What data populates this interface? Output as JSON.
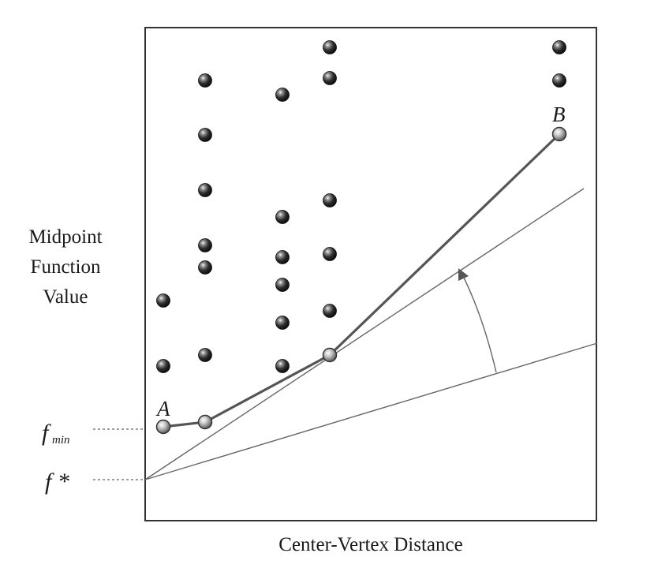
{
  "diagram": {
    "ylabel_lines": [
      "Midpoint",
      "Function",
      "Value"
    ],
    "xlabel": "Center-Vertex Distance",
    "labels": {
      "a": "A",
      "b": "B",
      "fmin_main": "f",
      "fmin_sub": "min",
      "fstar": "f *"
    }
  }
}
